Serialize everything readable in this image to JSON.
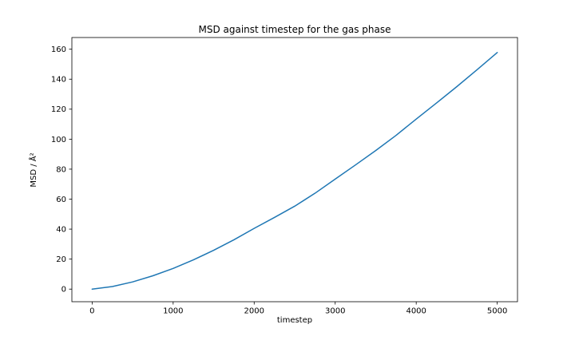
{
  "figure": {
    "background": "#ffffff"
  },
  "chart_data": {
    "type": "line",
    "title": "MSD against timestep for the gas phase",
    "xlabel": "timestep",
    "ylabel": "MSD / Å²",
    "line_color": "#1f77b4",
    "axis_color": "#000000",
    "grid": false,
    "legend": null,
    "xlim": [
      -250,
      5250
    ],
    "ylim": [
      -8.4,
      167.8
    ],
    "xticks": [
      0,
      1000,
      2000,
      3000,
      4000,
      5000
    ],
    "yticks": [
      0,
      20,
      40,
      60,
      80,
      100,
      120,
      140,
      160
    ],
    "x": [
      0,
      250,
      500,
      750,
      1000,
      1250,
      1500,
      1750,
      2000,
      2250,
      2500,
      2750,
      3000,
      3250,
      3500,
      3750,
      4000,
      4250,
      4500,
      4750,
      5000
    ],
    "y": [
      0,
      1.7,
      4.8,
      8.9,
      13.8,
      19.5,
      25.9,
      32.9,
      40.5,
      47.8,
      55.3,
      63.9,
      73.4,
      82.8,
      92.4,
      102.5,
      113.4,
      124.1,
      135.0,
      146.3,
      157.8
    ]
  }
}
